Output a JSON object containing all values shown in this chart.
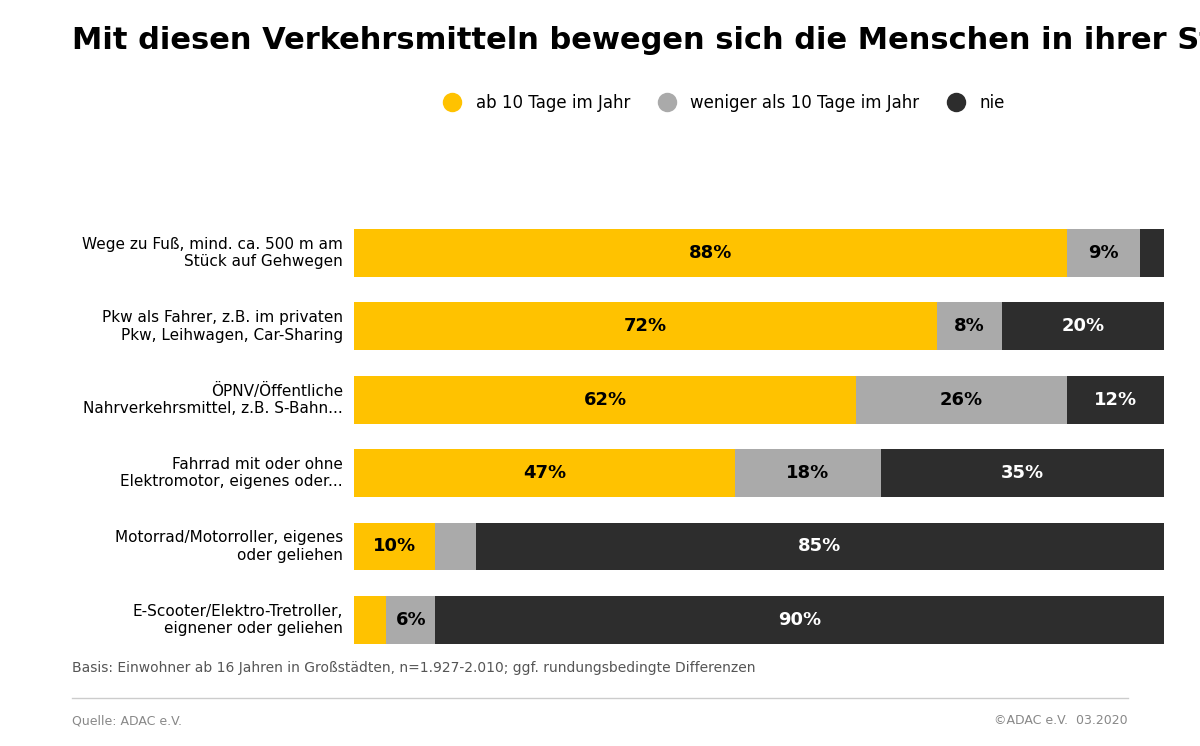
{
  "title": "Mit diesen Verkehrsmitteln bewegen sich die Menschen in ihrer Stadt",
  "categories": [
    "E-Scooter/Elektro-Tretroller,\neignener oder geliehen",
    "Motorrad/Motorroller, eigenes\noder geliehen",
    "Fahrrad mit oder ohne\nElektromotor, eigenes oder...",
    "ÖPNV/Öffentliche\nNahrverkehrsmittel, z.B. S-Bahn...",
    "Pkw als Fahrer, z.B. im privaten\nPkw, Leihwagen, Car-Sharing",
    "Wege zu Fuß, mind. ca. 500 m am\nStück auf Gehwegen"
  ],
  "yellow_values": [
    4,
    10,
    47,
    62,
    72,
    88
  ],
  "gray_values": [
    6,
    5,
    18,
    26,
    8,
    9
  ],
  "dark_values": [
    90,
    85,
    35,
    12,
    20,
    3
  ],
  "yellow_labels": [
    "",
    "10%",
    "47%",
    "62%",
    "72%",
    "88%"
  ],
  "gray_labels": [
    "6%",
    "",
    "18%",
    "26%",
    "8%",
    "9%"
  ],
  "dark_labels": [
    "90%",
    "85%",
    "35%",
    "12%",
    "20%",
    ""
  ],
  "yellow_color": "#FFC200",
  "gray_color": "#AAAAAA",
  "dark_color": "#2D2D2D",
  "legend_labels": [
    "ab 10 Tage im Jahr",
    "weniger als 10 Tage im Jahr",
    "nie"
  ],
  "footnote": "Basis: Einwohner ab 16 Jahren in Großstädten, n=1.927-2.010; ggf. rundungsbedingte Differenzen",
  "source_left": "Quelle: ADAC e.V.",
  "source_right": "©ADAC e.V.  03.2020",
  "bg_color": "#FFFFFF",
  "title_fontsize": 22,
  "label_fontsize": 13,
  "category_fontsize": 11,
  "legend_fontsize": 12,
  "footnote_fontsize": 10,
  "bar_height": 0.65
}
